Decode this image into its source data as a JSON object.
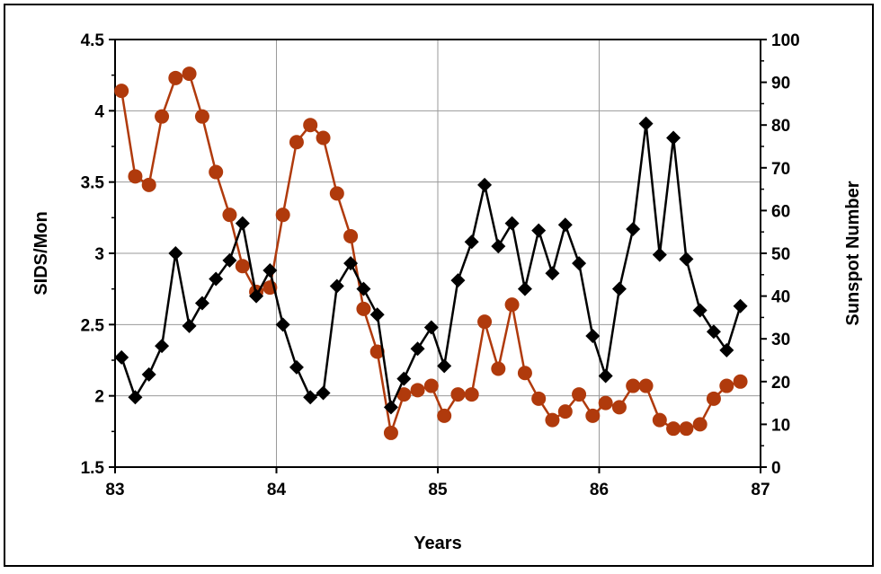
{
  "chart_data": {
    "type": "line",
    "title": "",
    "xlabel": "Years",
    "ylabel": "SIDS/Mon",
    "y2label": "Sunspot Number",
    "xlim": [
      83,
      87
    ],
    "ylim": [
      1.5,
      4.5
    ],
    "y2lim": [
      0,
      100
    ],
    "xticks": [
      "83",
      "84",
      "85",
      "86",
      "87"
    ],
    "yticks": [
      "1.5",
      "2",
      "2.5",
      "3",
      "3.5",
      "4",
      "4.5"
    ],
    "y2ticks": [
      "0",
      "10",
      "20",
      "30",
      "40",
      "50",
      "60",
      "70",
      "80",
      "90",
      "100"
    ],
    "grid": true,
    "legend": "none",
    "series": [
      {
        "axis": "left",
        "color": "#000000",
        "marker": "diamond",
        "x": [
          83.04,
          83.125,
          83.21,
          83.29,
          83.375,
          83.46,
          83.54,
          83.625,
          83.71,
          83.79,
          83.875,
          83.96,
          84.04,
          84.125,
          84.21,
          84.29,
          84.375,
          84.46,
          84.54,
          84.625,
          84.71,
          84.79,
          84.875,
          84.96,
          85.04,
          85.125,
          85.21,
          85.29,
          85.375,
          85.46,
          85.54,
          85.625,
          85.71,
          85.79,
          85.875,
          85.96,
          86.04,
          86.125,
          86.21,
          86.29,
          86.375,
          86.46,
          86.54,
          86.625,
          86.71,
          86.79,
          86.875
        ],
        "values": [
          2.27,
          1.99,
          2.15,
          2.35,
          3.0,
          2.49,
          2.65,
          2.82,
          2.95,
          3.21,
          2.7,
          2.88,
          2.5,
          2.2,
          1.99,
          2.02,
          2.77,
          2.93,
          2.75,
          2.57,
          1.92,
          2.12,
          2.33,
          2.48,
          2.21,
          2.81,
          3.08,
          3.48,
          3.05,
          3.21,
          2.75,
          3.16,
          2.86,
          3.2,
          2.93,
          2.42,
          2.14,
          2.75,
          3.17,
          3.91,
          2.99,
          3.81,
          2.96,
          2.6,
          2.45,
          2.32,
          2.63
        ]
      },
      {
        "axis": "right",
        "color": "#b03a0c",
        "marker": "circle",
        "x": [
          83.04,
          83.125,
          83.21,
          83.29,
          83.375,
          83.46,
          83.54,
          83.625,
          83.71,
          83.79,
          83.875,
          83.96,
          84.04,
          84.125,
          84.21,
          84.29,
          84.375,
          84.46,
          84.54,
          84.625,
          84.71,
          84.79,
          84.875,
          84.96,
          85.04,
          85.125,
          85.21,
          85.29,
          85.375,
          85.46,
          85.54,
          85.625,
          85.71,
          85.79,
          85.875,
          85.96,
          86.04,
          86.125,
          86.21,
          86.29,
          86.375,
          86.46,
          86.54,
          86.625,
          86.71,
          86.79,
          86.875
        ],
        "values": [
          88,
          68,
          66,
          82,
          91,
          92,
          82,
          69,
          59,
          47,
          41,
          42,
          59,
          76,
          80,
          77,
          64,
          54,
          37,
          27,
          8,
          17,
          18,
          19,
          12,
          17,
          17,
          34,
          23,
          38,
          22,
          16,
          11,
          13,
          17,
          12,
          15,
          14,
          19,
          19,
          11,
          9,
          9,
          10,
          16,
          19,
          20
        ]
      }
    ]
  }
}
